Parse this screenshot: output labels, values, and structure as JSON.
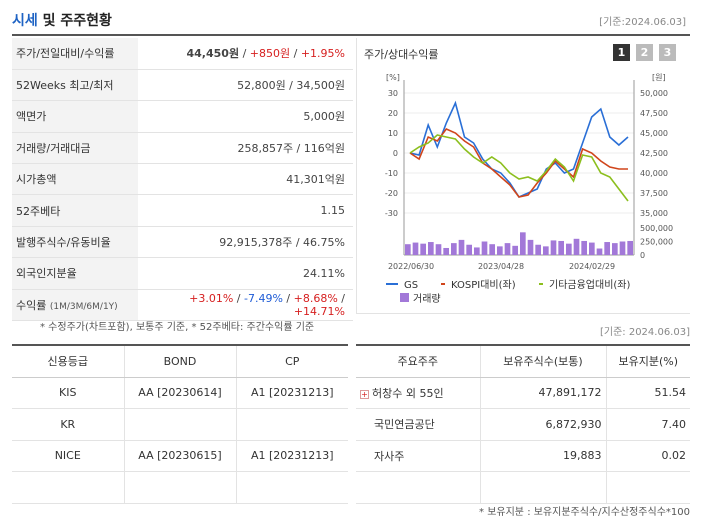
{
  "header": {
    "title_part1": "시세",
    "title_part2": " 및 주주현황",
    "as_of": "[기준:2024.06.03]"
  },
  "summary": {
    "price_label": "주가/전일대비/수익률",
    "price": "44,450원",
    "sep": " / ",
    "change": "+850원",
    "change_pct": "+1.95%",
    "wk52_label": "52Weeks 최고/최저",
    "wk52_value": "52,800원 / 34,500원",
    "par_label": "액면가",
    "par_value": "5,000원",
    "volume_label": "거래량/거래대금",
    "volume_value": "258,857주 / 116억원",
    "mcap_label": "시가총액",
    "mcap_value": "41,301억원",
    "beta_label": "52주베타",
    "beta_value": "1.15",
    "shares_label": "발행주식수/유동비율",
    "shares_value": "92,915,378주 / 46.75%",
    "foreign_label": "외국인지분율",
    "foreign_value": "24.11%",
    "returns_label": "수익률",
    "returns_sub": "(1M/3M/6M/1Y)",
    "returns": [
      "+3.01%",
      "-7.49%",
      "+8.68%",
      "+14.71%"
    ]
  },
  "chart_panel": {
    "title": "주가/상대수익률",
    "tabs": [
      "1",
      "2",
      "3"
    ],
    "tab_colors": [
      "#333333",
      "#bbbbbb",
      "#bbbbbb"
    ],
    "left_unit": "[%]",
    "right_unit": "[원]"
  },
  "chart_data": {
    "type": "line",
    "x_ticks": [
      "2022/06/30",
      "2023/04/28",
      "2024/02/29"
    ],
    "y_left_ticks": [
      "30",
      "20",
      "10",
      "0",
      "-10",
      "-20",
      "-30"
    ],
    "y_left_range": [
      -30,
      30
    ],
    "y_right_ticks": [
      "50,000",
      "47,500",
      "45,000",
      "42,500",
      "40,000",
      "37,500",
      "35,000"
    ],
    "y_right_range": [
      35000,
      50000
    ],
    "vol_ticks": [
      "500,000",
      "250,000",
      "0"
    ],
    "vol_range": [
      0,
      500000
    ],
    "series": [
      {
        "name": "GS",
        "color": "#2a6fd6",
        "values": [
          0,
          -1,
          14,
          3,
          15,
          25,
          8,
          5,
          -3,
          -8,
          -10,
          -15,
          -22,
          -20,
          -18,
          -8,
          -5,
          -10,
          -8,
          5,
          18,
          22,
          8,
          4,
          8
        ]
      },
      {
        "name": "KOSPI대비(좌)",
        "color": "#d0451b",
        "values": [
          0,
          -3,
          8,
          6,
          12,
          10,
          6,
          3,
          -5,
          -8,
          -12,
          -16,
          -22,
          -21,
          -15,
          -10,
          -4,
          -8,
          -12,
          2,
          0,
          -4,
          -7,
          -8,
          -8
        ]
      },
      {
        "name": "기타금융업대비(좌)",
        "color": "#8cbf1e",
        "values": [
          0,
          3,
          5,
          9,
          8,
          7,
          2,
          -2,
          -5,
          -2,
          -5,
          -10,
          -13,
          -12,
          -14,
          -9,
          -3,
          -7,
          -14,
          -1,
          -2,
          -10,
          -12,
          -18,
          -24
        ]
      }
    ],
    "volume": {
      "name": "거래량",
      "color": "#a278d8",
      "values": [
        200000,
        230000,
        210000,
        240000,
        200000,
        130000,
        220000,
        280000,
        190000,
        140000,
        250000,
        200000,
        160000,
        220000,
        170000,
        420000,
        280000,
        190000,
        160000,
        270000,
        260000,
        210000,
        300000,
        260000,
        230000,
        120000,
        240000,
        220000,
        250000,
        260000
      ]
    }
  },
  "notes": {
    "line": "* 수정주가(차트포함), 보통주 기준, * 52주베타: 주간수익률 기준",
    "as_of": "[기준: 2024.06.03]"
  },
  "credit": {
    "headers": [
      "신용등급",
      "BOND",
      "CP"
    ],
    "rows": [
      [
        "KIS",
        "AA [20230614]",
        "A1 [20231213]"
      ],
      [
        "KR",
        "",
        ""
      ],
      [
        "NICE",
        "AA [20230615]",
        "A1 [20231213]"
      ],
      [
        "",
        "",
        ""
      ]
    ]
  },
  "holders": {
    "headers": [
      "주요주주",
      "보유주식수(보통)",
      "보유지분(%)"
    ],
    "rows": [
      [
        "허창수 외 55인",
        "47,891,172",
        "51.54"
      ],
      [
        "국민연금공단",
        "6,872,930",
        "7.40"
      ],
      [
        "자사주",
        "19,883",
        "0.02"
      ],
      [
        "",
        "",
        ""
      ]
    ],
    "footnote": "* 보유지분 : 보유지분주식수/지수산정주식수*100"
  }
}
